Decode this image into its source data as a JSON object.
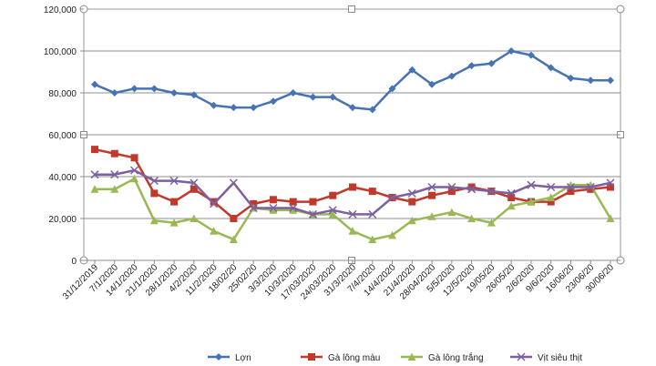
{
  "chart_data": {
    "type": "line",
    "title": "",
    "xlabel": "",
    "ylabel": "",
    "ylim": [
      0,
      120000
    ],
    "y_ticks": [
      "0",
      "20,000",
      "40,000",
      "60,000",
      "80,000",
      "100,000",
      "120,000"
    ],
    "y_tick_values": [
      0,
      20000,
      40000,
      60000,
      80000,
      100000,
      120000
    ],
    "grid": "horizontal",
    "legend_position": "bottom",
    "categories": [
      "31/12/2019",
      "7/1/2020",
      "14/1/2020",
      "21/1/2020",
      "28/1/2020",
      "4/2/2020",
      "11/2/2020",
      "18/02/20",
      "25/02/20",
      "3/3/2020",
      "10/3/2020",
      "17/03/2020",
      "24/03/2020",
      "31/3/2020",
      "7/4/2020",
      "14/4/2020",
      "21/4/2020",
      "28/04/2020",
      "5/5/2020",
      "12/5/2020",
      "19/05/20",
      "26/05/20",
      "2/6/2020",
      "9/6/2020",
      "16/06/20",
      "23/06/20",
      "30/06/20"
    ],
    "series": [
      {
        "name": "Lợn",
        "color": "#4573b4",
        "marker": "diamond",
        "values": [
          84000,
          80000,
          82000,
          82000,
          80000,
          79000,
          74000,
          73000,
          73000,
          76000,
          80000,
          78000,
          78000,
          73000,
          72000,
          82000,
          91000,
          84000,
          88000,
          93000,
          94000,
          100000,
          98000,
          92000,
          87000,
          86000,
          86000
        ]
      },
      {
        "name": "Gà lông màu",
        "color": "#c0392b",
        "marker": "square",
        "values": [
          53000,
          51000,
          49000,
          32000,
          28000,
          34000,
          28000,
          20000,
          27000,
          29000,
          28000,
          28000,
          31000,
          35000,
          33000,
          30000,
          28000,
          31000,
          33000,
          35000,
          33000,
          30000,
          28000,
          28000,
          33000,
          34000,
          35000
        ]
      },
      {
        "name": "Gà lông trắng",
        "color": "#98b954",
        "marker": "triangle",
        "values": [
          34000,
          34000,
          39000,
          19000,
          18000,
          20000,
          14000,
          10000,
          25000,
          24000,
          24000,
          22000,
          22000,
          14000,
          10000,
          12000,
          19000,
          21000,
          23000,
          20000,
          18000,
          26000,
          28000,
          30000,
          36000,
          36000,
          20000
        ]
      },
      {
        "name": "Vịt siêu thịt",
        "color": "#7d60a0",
        "marker": "x",
        "values": [
          41000,
          41000,
          43000,
          38000,
          38000,
          37000,
          27000,
          37000,
          25000,
          25000,
          25000,
          22000,
          24000,
          22000,
          22000,
          30000,
          32000,
          35000,
          35000,
          34000,
          33000,
          32000,
          36000,
          35000,
          35000,
          35000,
          37000
        ]
      }
    ]
  }
}
